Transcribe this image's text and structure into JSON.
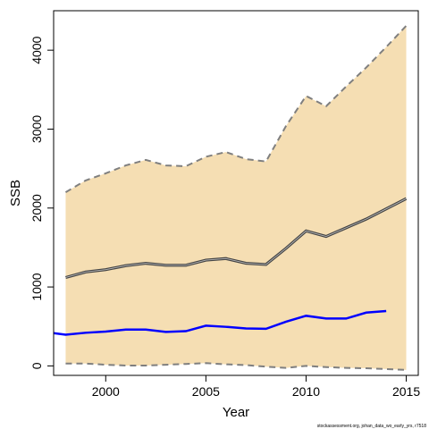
{
  "chart_data": {
    "type": "line",
    "xlabel": "Year",
    "ylabel": "SSB",
    "xlim": [
      1997.4,
      2015.6
    ],
    "ylim": [
      -120,
      4500
    ],
    "x_ticks": [
      2000,
      2005,
      2010,
      2015
    ],
    "y_ticks": [
      0,
      1000,
      2000,
      3000,
      4000
    ],
    "grid": false,
    "legend": "none",
    "band": {
      "color": "#f5deb3",
      "edge_color": "#7f7f7f",
      "x": [
        1998,
        1999,
        2000,
        2001,
        2002,
        2003,
        2004,
        2005,
        2006,
        2007,
        2008,
        2009,
        2010,
        2011,
        2012,
        2013,
        2014,
        2015
      ],
      "upper": [
        2200,
        2350,
        2440,
        2540,
        2610,
        2540,
        2530,
        2650,
        2710,
        2620,
        2590,
        3040,
        3420,
        3290,
        3540,
        3780,
        4040,
        4310
      ],
      "lower": [
        30,
        30,
        15,
        5,
        5,
        15,
        25,
        35,
        20,
        10,
        -10,
        -25,
        0,
        -15,
        -25,
        -30,
        -40,
        -50
      ]
    },
    "series": [
      {
        "color": "#444444",
        "x": [
          1998,
          1999,
          2000,
          2001,
          2002,
          2003,
          2004,
          2005,
          2006,
          2007,
          2008,
          2009,
          2010,
          2011,
          2012,
          2013,
          2014,
          2015
        ],
        "values": [
          1120,
          1190,
          1220,
          1270,
          1300,
          1275,
          1275,
          1340,
          1360,
          1300,
          1285,
          1490,
          1710,
          1640,
          1750,
          1860,
          1990,
          2120
        ]
      },
      {
        "color": "#0000ff",
        "x": [
          1997.4,
          1998,
          1999,
          2000,
          2001,
          2002,
          2003,
          2004,
          2005,
          2006,
          2007,
          2008,
          2009,
          2010,
          2011,
          2012,
          2013,
          2014
        ],
        "values": [
          415,
          395,
          420,
          435,
          460,
          460,
          430,
          440,
          510,
          495,
          475,
          470,
          560,
          635,
          600,
          600,
          675,
          695
        ]
      }
    ]
  },
  "footer": {
    "note": "stockassessment.org, johan_data_wo_early_yrs, r7518"
  }
}
